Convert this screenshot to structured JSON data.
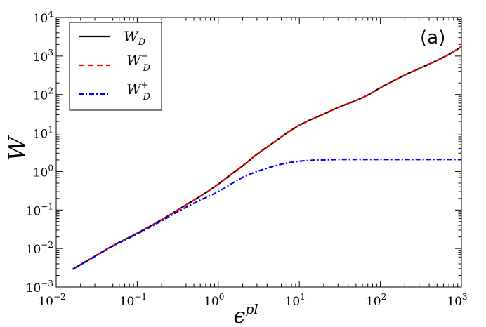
{
  "chart_data": {
    "type": "line",
    "title": "",
    "panel_label": "(a)",
    "xlabel": {
      "base": "ϵ",
      "sup": "pl"
    },
    "ylabel": "W",
    "xscale": "log",
    "yscale": "log",
    "xlim": [
      0.01,
      1000
    ],
    "ylim": [
      0.001,
      10000
    ],
    "x_ticks": [
      {
        "base": "10",
        "exp": "−2",
        "value": 0.01
      },
      {
        "base": "10",
        "exp": "−1",
        "value": 0.1
      },
      {
        "base": "10",
        "exp": "0",
        "value": 1
      },
      {
        "base": "10",
        "exp": "1",
        "value": 10
      },
      {
        "base": "10",
        "exp": "2",
        "value": 100
      },
      {
        "base": "10",
        "exp": "3",
        "value": 1000
      }
    ],
    "y_ticks": [
      {
        "base": "10",
        "exp": "−3",
        "value": 0.001
      },
      {
        "base": "10",
        "exp": "−2",
        "value": 0.01
      },
      {
        "base": "10",
        "exp": "−1",
        "value": 0.1
      },
      {
        "base": "10",
        "exp": "0",
        "value": 1
      },
      {
        "base": "10",
        "exp": "1",
        "value": 10
      },
      {
        "base": "10",
        "exp": "2",
        "value": 100
      },
      {
        "base": "10",
        "exp": "3",
        "value": 1000
      },
      {
        "base": "10",
        "exp": "4",
        "value": 10000
      }
    ],
    "legend": {
      "placement": "top-left",
      "entries": [
        {
          "main": "W",
          "sub": "D",
          "sup": "",
          "series": "W_D"
        },
        {
          "main": "W",
          "sub": "D",
          "sup": "−",
          "series": "W_D_minus"
        },
        {
          "main": "W",
          "sub": "D",
          "sup": "+",
          "series": "W_D_plus"
        }
      ]
    },
    "series": [
      {
        "name": "W_D",
        "color": "#000000",
        "style": "solid",
        "x": [
          0.016,
          0.03,
          0.05,
          0.1,
          0.2,
          0.3,
          0.5,
          0.7,
          1.0,
          1.5,
          2,
          3,
          5,
          7,
          10,
          15,
          20,
          30,
          50,
          70,
          100,
          200,
          300,
          500,
          700,
          1000
        ],
        "y": [
          0.0029,
          0.0063,
          0.0118,
          0.025,
          0.056,
          0.094,
          0.18,
          0.28,
          0.47,
          0.9,
          1.4,
          2.8,
          6.0,
          10,
          16,
          24,
          31,
          46,
          70,
          97,
          150,
          320,
          470,
          770,
          1100,
          1750
        ]
      },
      {
        "name": "W_D_minus",
        "color": "#ff0000",
        "style": "dashed",
        "x": [
          0.016,
          0.03,
          0.05,
          0.1,
          0.2,
          0.3,
          0.5,
          0.7,
          1.0,
          1.5,
          2,
          3,
          5,
          7,
          10,
          15,
          20,
          30,
          50,
          70,
          100,
          200,
          300,
          500,
          700,
          1000
        ],
        "y": [
          0.0029,
          0.0063,
          0.0118,
          0.025,
          0.056,
          0.094,
          0.18,
          0.28,
          0.47,
          0.9,
          1.4,
          2.8,
          6.0,
          10,
          16,
          24,
          31,
          46,
          70,
          97,
          150,
          320,
          470,
          770,
          1100,
          1750
        ]
      },
      {
        "name": "W_D_plus",
        "color": "#0000ff",
        "style": "dashdot",
        "x": [
          0.016,
          0.03,
          0.05,
          0.1,
          0.2,
          0.3,
          0.5,
          0.7,
          1.0,
          1.5,
          2,
          3,
          5,
          7,
          10,
          15,
          20,
          30,
          50,
          70,
          100,
          200,
          300,
          500,
          700,
          1000
        ],
        "y": [
          0.0029,
          0.0062,
          0.0115,
          0.024,
          0.052,
          0.085,
          0.15,
          0.21,
          0.3,
          0.5,
          0.7,
          1.0,
          1.4,
          1.65,
          1.85,
          1.97,
          2.0,
          2.05,
          2.05,
          2.05,
          2.05,
          2.05,
          2.05,
          2.05,
          2.05,
          2.05
        ]
      }
    ]
  }
}
